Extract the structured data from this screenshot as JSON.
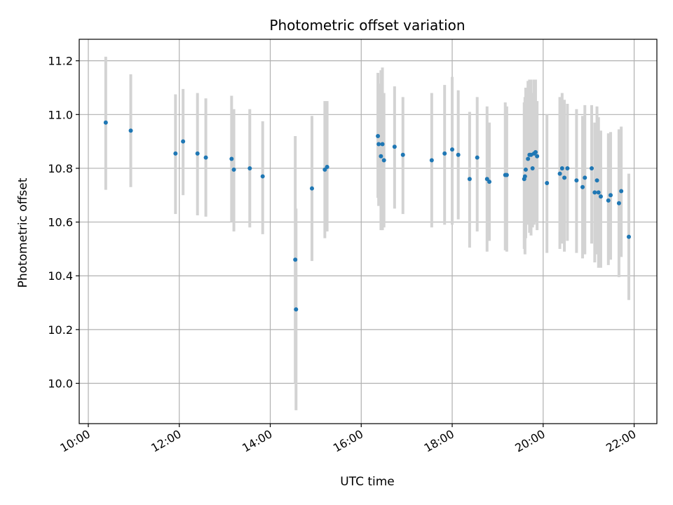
{
  "chart_data": {
    "type": "scatter",
    "title": "Photometric offset variation",
    "xlabel": "UTC time",
    "ylabel": "Photometric offset",
    "x_axis": "time",
    "xlim": [
      "09:48",
      "22:30"
    ],
    "ylim": [
      9.85,
      11.28
    ],
    "x_ticks": [
      "10:00",
      "12:00",
      "14:00",
      "16:00",
      "18:00",
      "20:00",
      "22:00"
    ],
    "y_ticks": [
      "10.0",
      "10.2",
      "10.4",
      "10.6",
      "10.8",
      "11.0",
      "11.2"
    ],
    "grid": true,
    "colors": {
      "point": "#1f77b4",
      "errorbar": "#d3d3d3",
      "grid": "#b0b0b0"
    },
    "series": [
      {
        "x": [
          "10:23",
          "10:56",
          "11:55",
          "12:05",
          "12:24",
          "12:35",
          "13:09",
          "13:12",
          "13:33",
          "13:50",
          "14:33",
          "14:34",
          "14:55",
          "15:12",
          "15:15",
          "16:22",
          "16:23",
          "16:26",
          "16:28",
          "16:30",
          "16:44",
          "16:55",
          "17:33",
          "17:50",
          "18:00",
          "18:08",
          "18:23",
          "18:33",
          "18:46",
          "18:49",
          "19:10",
          "19:12",
          "19:35",
          "19:36",
          "19:37",
          "19:40",
          "19:42",
          "19:44",
          "19:46",
          "19:48",
          "19:50",
          "19:52",
          "20:05",
          "20:22",
          "20:25",
          "20:28",
          "20:32",
          "20:44",
          "20:52",
          "20:55",
          "21:04",
          "21:08",
          "21:11",
          "21:13",
          "21:16",
          "21:26",
          "21:29",
          "21:40",
          "21:43",
          "21:53"
        ],
        "y": [
          10.97,
          10.94,
          10.855,
          10.9,
          10.855,
          10.84,
          10.835,
          10.795,
          10.8,
          10.77,
          10.46,
          10.275,
          10.725,
          10.795,
          10.805,
          10.92,
          10.89,
          10.845,
          10.89,
          10.83,
          10.88,
          10.85,
          10.83,
          10.855,
          10.87,
          10.85,
          10.76,
          10.84,
          10.76,
          10.75,
          10.775,
          10.775,
          10.76,
          10.77,
          10.795,
          10.835,
          10.85,
          10.85,
          10.8,
          10.855,
          10.86,
          10.845,
          10.745,
          10.78,
          10.8,
          10.765,
          10.8,
          10.755,
          10.73,
          10.765,
          10.8,
          10.71,
          10.755,
          10.71,
          10.695,
          10.68,
          10.7,
          10.67,
          10.715,
          10.545
        ],
        "err_low": [
          10.72,
          10.73,
          10.63,
          10.7,
          10.625,
          10.62,
          10.6,
          10.565,
          10.58,
          10.555,
          10.0,
          9.9,
          10.455,
          10.54,
          10.565,
          10.69,
          10.66,
          10.57,
          10.57,
          10.58,
          10.65,
          10.63,
          10.58,
          10.59,
          10.59,
          10.61,
          10.505,
          10.565,
          10.49,
          10.53,
          10.495,
          10.49,
          10.5,
          10.48,
          10.54,
          10.59,
          10.56,
          10.55,
          10.58,
          10.59,
          10.6,
          10.57,
          10.485,
          10.5,
          10.52,
          10.49,
          10.53,
          10.485,
          10.465,
          10.48,
          10.52,
          10.45,
          10.48,
          10.43,
          10.43,
          10.44,
          10.46,
          10.395,
          10.47,
          10.31
        ],
        "err_high": [
          11.215,
          11.15,
          11.075,
          11.095,
          11.08,
          11.06,
          11.07,
          11.02,
          11.02,
          10.975,
          10.92,
          10.65,
          10.995,
          11.05,
          11.05,
          11.155,
          11.115,
          11.165,
          11.175,
          11.08,
          11.105,
          11.065,
          11.08,
          11.11,
          11.14,
          11.09,
          11.01,
          11.065,
          11.03,
          10.97,
          11.045,
          11.03,
          11.045,
          11.065,
          11.1,
          11.125,
          11.13,
          11.13,
          11.08,
          11.13,
          11.13,
          11.05,
          11.0,
          11.065,
          11.08,
          11.055,
          11.04,
          11.02,
          10.995,
          11.035,
          11.035,
          10.97,
          11.03,
          10.99,
          10.94,
          10.93,
          10.935,
          10.945,
          10.955,
          10.78
        ]
      }
    ]
  }
}
